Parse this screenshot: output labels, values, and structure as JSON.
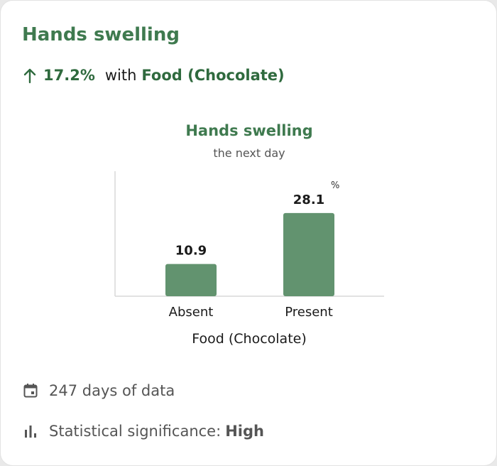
{
  "card": {
    "title": "Hands swelling",
    "effect": {
      "change": "17.2%",
      "connector": "with",
      "factor": "Food (Chocolate)"
    }
  },
  "chart_data": {
    "type": "bar",
    "title": "Hands swelling",
    "subtitle": "the next day",
    "categories": [
      "Absent",
      "Present"
    ],
    "values": [
      10.9,
      28.1
    ],
    "value_labels": [
      "10.9",
      "28.1"
    ],
    "unit": "%",
    "xlabel": "Food (Chocolate)",
    "ylabel": "",
    "ylim": [
      0,
      31.2
    ],
    "bar_color": "#62936f"
  },
  "footer": {
    "days_text": "247 days of data",
    "significance_label": "Statistical significance:",
    "significance_value": "High"
  },
  "colors": {
    "title": "#3f7a4f",
    "accent": "#2f6a3e",
    "bar": "#62936f",
    "muted_text": "#555555"
  },
  "icons": {
    "effect": "arrow-up-icon",
    "days": "calendar-icon",
    "significance": "bar-chart-icon"
  }
}
